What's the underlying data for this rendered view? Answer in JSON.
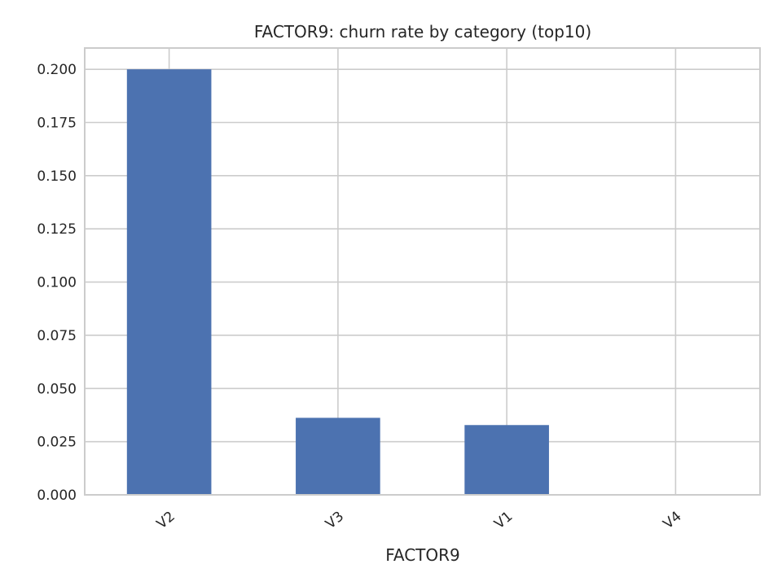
{
  "chart_data": {
    "type": "bar",
    "title": "FACTOR9: churn rate by category (top10)",
    "xlabel": "FACTOR9",
    "ylabel": "",
    "categories": [
      "V2",
      "V3",
      "V1",
      "V4"
    ],
    "values": [
      0.2,
      0.0362,
      0.0328,
      0.0
    ],
    "ylim": [
      0,
      0.21
    ],
    "yticks": [
      0.0,
      0.025,
      0.05,
      0.075,
      0.1,
      0.125,
      0.15,
      0.175,
      0.2
    ],
    "ytick_labels": [
      "0.000",
      "0.025",
      "0.050",
      "0.075",
      "0.100",
      "0.125",
      "0.150",
      "0.175",
      "0.200"
    ],
    "grid": true,
    "bar_color": "#4c72b0",
    "grid_color": "#cccccc",
    "text_color": "#262626"
  }
}
